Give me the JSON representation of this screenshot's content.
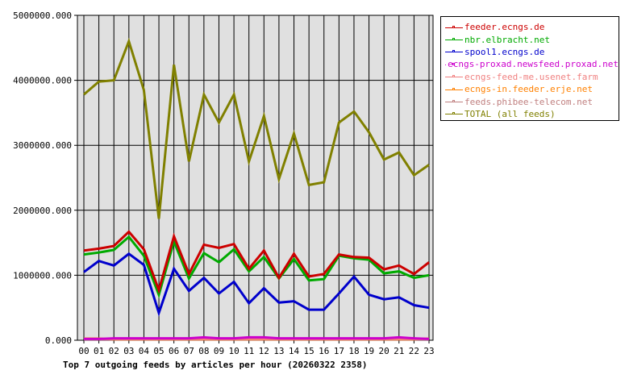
{
  "chart_data": {
    "type": "line",
    "title": "Top 7 outgoing feeds by articles per hour (20260322 2358)",
    "xlabel": "",
    "ylabel": "",
    "ylim": [
      0,
      5000000
    ],
    "yticks": [
      "0.000",
      "1000000.000",
      "2000000.000",
      "3000000.000",
      "4000000.000",
      "5000000.000"
    ],
    "grid": true,
    "legend_position": "right",
    "categories": [
      "00",
      "01",
      "02",
      "03",
      "04",
      "05",
      "06",
      "07",
      "08",
      "09",
      "10",
      "11",
      "12",
      "13",
      "14",
      "15",
      "16",
      "17",
      "18",
      "19",
      "20",
      "21",
      "22",
      "23"
    ],
    "series": [
      {
        "name": "feeder.ecngs.de",
        "color": "#cc0000",
        "values": [
          1380000,
          1410000,
          1450000,
          1670000,
          1400000,
          770000,
          1600000,
          1020000,
          1470000,
          1420000,
          1480000,
          1100000,
          1380000,
          960000,
          1330000,
          980000,
          1020000,
          1320000,
          1280000,
          1270000,
          1090000,
          1150000,
          1020000,
          1200000
        ]
      },
      {
        "name": "nbr.elbracht.net",
        "color": "#00aa00",
        "values": [
          1320000,
          1350000,
          1390000,
          1590000,
          1300000,
          700000,
          1520000,
          950000,
          1340000,
          1200000,
          1400000,
          1060000,
          1280000,
          950000,
          1250000,
          920000,
          940000,
          1300000,
          1260000,
          1240000,
          1030000,
          1060000,
          960000,
          1000000
        ]
      },
      {
        "name": "spool1.ecngs.de",
        "color": "#0000cc",
        "values": [
          1050000,
          1220000,
          1150000,
          1330000,
          1160000,
          420000,
          1100000,
          760000,
          960000,
          720000,
          900000,
          570000,
          800000,
          580000,
          600000,
          470000,
          470000,
          720000,
          980000,
          700000,
          630000,
          660000,
          540000,
          500000
        ]
      },
      {
        "name": "ecngs-proxad.newsfeed.proxad.net",
        "color": "#cc00cc",
        "values": [
          20000,
          20000,
          30000,
          30000,
          30000,
          30000,
          30000,
          30000,
          45000,
          30000,
          30000,
          45000,
          45000,
          30000,
          30000,
          30000,
          30000,
          30000,
          30000,
          30000,
          30000,
          45000,
          30000,
          20000
        ]
      },
      {
        "name": "ecngs-feed-me.usenet.farm",
        "color": "#f08080",
        "values": [
          20000,
          20000,
          20000,
          20000,
          20000,
          20000,
          20000,
          20000,
          20000,
          20000,
          20000,
          20000,
          20000,
          20000,
          20000,
          20000,
          20000,
          20000,
          20000,
          20000,
          20000,
          20000,
          20000,
          20000
        ]
      },
      {
        "name": "ecngs-in.feeder.erje.net",
        "color": "#ff8000",
        "values": [
          25000,
          25000,
          15000,
          15000,
          15000,
          15000,
          15000,
          15000,
          15000,
          15000,
          15000,
          15000,
          15000,
          15000,
          15000,
          15000,
          15000,
          15000,
          15000,
          15000,
          15000,
          15000,
          15000,
          25000
        ]
      },
      {
        "name": "feeds.phibee-telecom.net",
        "color": "#c08080",
        "values": [
          15000,
          15000,
          15000,
          15000,
          15000,
          15000,
          15000,
          15000,
          15000,
          15000,
          15000,
          15000,
          15000,
          15000,
          15000,
          15000,
          15000,
          15000,
          15000,
          15000,
          15000,
          15000,
          15000,
          15000
        ]
      },
      {
        "name": "TOTAL (all feeds)",
        "color": "#808000",
        "values": [
          3780000,
          3980000,
          4000000,
          4600000,
          3850000,
          1870000,
          4240000,
          2750000,
          3780000,
          3350000,
          3780000,
          2750000,
          3450000,
          2480000,
          3180000,
          2390000,
          2430000,
          3350000,
          3520000,
          3200000,
          2780000,
          2890000,
          2540000,
          2700000
        ]
      }
    ]
  }
}
